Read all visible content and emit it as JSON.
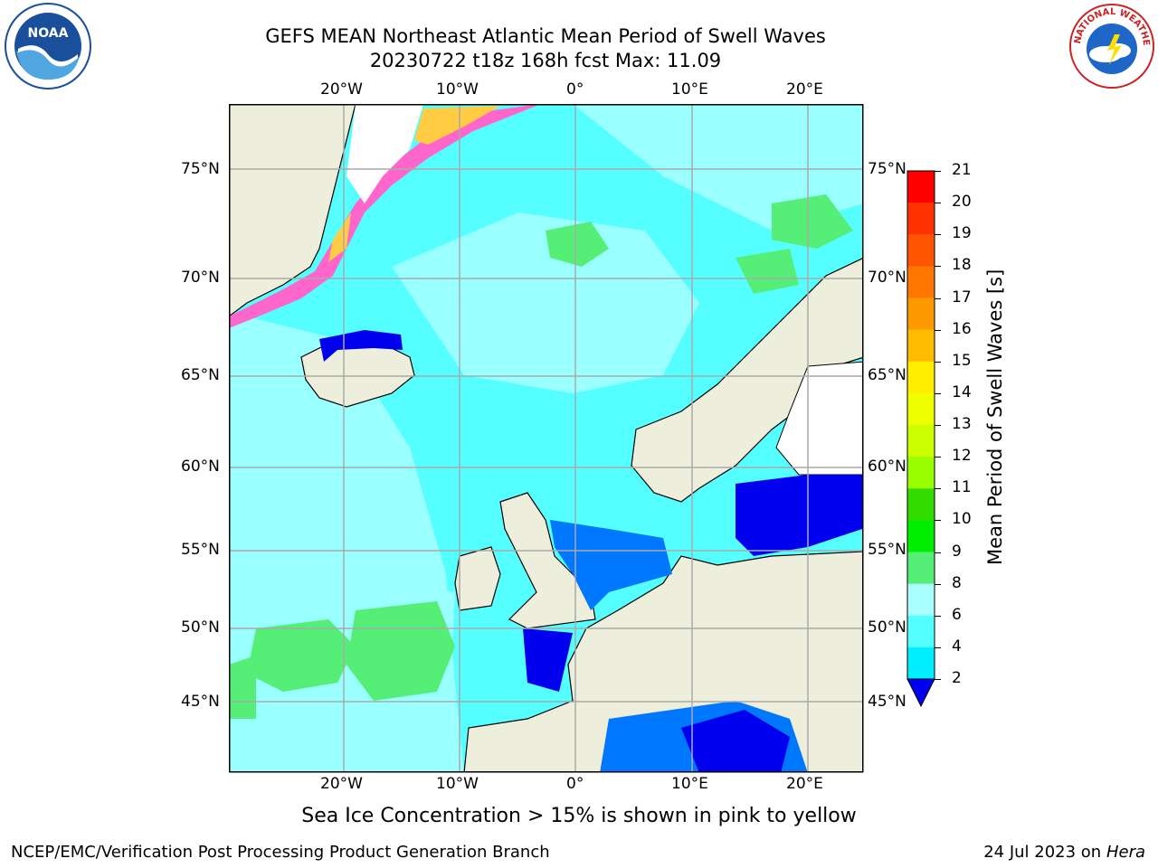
{
  "title_line1": "GEFS MEAN Northeast Atlantic Mean Period of Swell Waves",
  "title_line2": "20230722 t18z 168h fcst   Max: 11.09",
  "lon_labels": [
    "20°W",
    "10°W",
    "0°",
    "10°E",
    "20°E"
  ],
  "lat_labels": [
    "75°N",
    "70°N",
    "65°N",
    "60°N",
    "55°N",
    "50°N",
    "45°N"
  ],
  "colorbar": {
    "title": "Mean Period of Swell Waves [s]",
    "ticks": [
      "21",
      "20",
      "19",
      "18",
      "17",
      "16",
      "15",
      "14",
      "13",
      "12",
      "11",
      "10",
      "9",
      "8",
      "6",
      "4",
      "2"
    ],
    "colors": [
      "#ff0000",
      "#ff3300",
      "#ff5500",
      "#ff7700",
      "#ff9900",
      "#ffbb00",
      "#ffee00",
      "#eeff00",
      "#ccff00",
      "#99ff00",
      "#33dd00",
      "#00ee00",
      "#55ee77",
      "#aaffff",
      "#55ffff",
      "#00eeff",
      "#0077ff"
    ],
    "under_color": "#0000ee"
  },
  "caption": "Sea Ice Concentration > 15% is shown in pink to yellow",
  "footer_left": "NCEP/EMC/Verification Post Processing Product Generation Branch",
  "footer_right_date": "24 Jul 2023 on ",
  "footer_right_host": "Hera",
  "logo_left_text": "NOAA",
  "logo_right_text": "NATIONAL WEATHER SERVICE",
  "colors": {
    "ocean_light": "#99ffff",
    "ocean_mid": "#55ffff",
    "land": "#eeeedd",
    "shallow_blue": "#0077ff",
    "deep_blue": "#0000ee",
    "green": "#55ee77",
    "grid": "#aaaaaa"
  }
}
